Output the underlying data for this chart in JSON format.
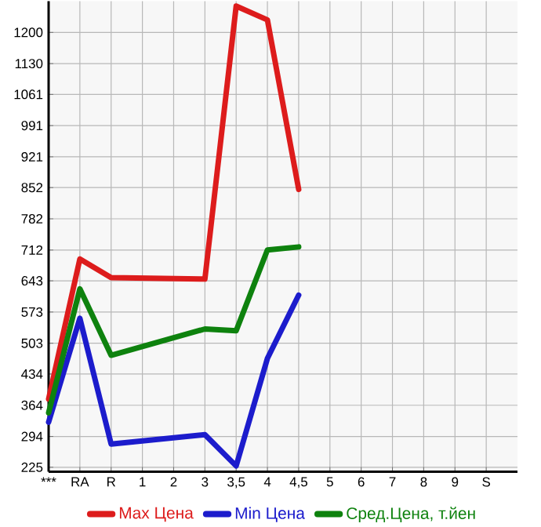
{
  "chart_data": {
    "type": "line",
    "categories": [
      "***",
      "RA",
      "R",
      "1",
      "2",
      "3",
      "3,5",
      "4",
      "4,5",
      "5",
      "6",
      "7",
      "8",
      "9",
      "S"
    ],
    "series": [
      {
        "name": "Max Цена",
        "color": "#dd1c1c",
        "values": [
          378,
          692,
          650,
          null,
          null,
          647,
          1259,
          1228,
          848,
          null,
          null,
          null,
          null,
          null,
          null
        ]
      },
      {
        "name": "Min Цена",
        "color": "#1c1ccc",
        "values": [
          326,
          559,
          277,
          null,
          null,
          298,
          228,
          469,
          611,
          null,
          null,
          null,
          null,
          null,
          null
        ]
      },
      {
        "name": "Сред.Цена, т.йен",
        "color": "#0e820e",
        "values": [
          347,
          625,
          476,
          null,
          null,
          535,
          531,
          712,
          719,
          null,
          null,
          null,
          null,
          null,
          null
        ]
      }
    ],
    "ylim": [
      215,
      1270
    ],
    "yticks": [
      225,
      294,
      364,
      434,
      503,
      573,
      643,
      712,
      782,
      852,
      921,
      991,
      1061,
      1130,
      1200
    ],
    "grid": true,
    "legend": "bottom",
    "marker": "none",
    "line_style": "solid"
  }
}
